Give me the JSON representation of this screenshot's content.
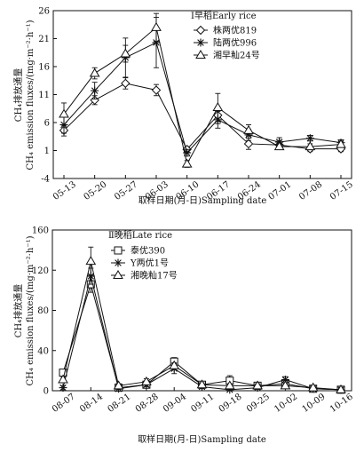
{
  "chart_data": [
    {
      "type": "line",
      "panel_title": "Ⅰ早稻Early rice",
      "xlabel": "取样日期(月-日)Sampling date",
      "ylabel_line1": "CH₄排放通量",
      "ylabel_line2": "CH₄ emission fluxes/(mg·m⁻²·h⁻¹)",
      "categories": [
        "05-13",
        "05-20",
        "05-27",
        "06-03",
        "06-10",
        "06-17",
        "06-24",
        "07-01",
        "07-08",
        "07-15"
      ],
      "yticks": [
        -4,
        1,
        6,
        11,
        16,
        21,
        26
      ],
      "ylim": [
        -4,
        26
      ],
      "legend_position": "top-right",
      "series": [
        {
          "name": "株两优819",
          "marker": "diamond",
          "values": [
            4.6,
            10,
            13,
            11.8,
            1.2,
            7.3,
            2.2,
            2.0,
            1.3,
            1.3
          ],
          "errors": [
            1.0,
            0.8,
            1.0,
            1.0,
            0.5,
            1.5,
            1.0,
            0.8,
            0.5,
            0.5
          ]
        },
        {
          "name": "陆两优996",
          "marker": "asterisk",
          "values": [
            5.6,
            11.7,
            17.6,
            20.3,
            0.6,
            6.5,
            3.8,
            2.5,
            3.2,
            2.4
          ],
          "errors": [
            1.5,
            1.5,
            3.5,
            4.5,
            0.6,
            1.5,
            1.0,
            0.8,
            0.5,
            0.5
          ]
        },
        {
          "name": "湘早籼24号",
          "marker": "triangle",
          "values": [
            7.5,
            14.8,
            18.3,
            23.0,
            -1.4,
            8.7,
            4.6,
            1.7,
            1.7,
            2.1
          ],
          "errors": [
            2.0,
            1.0,
            1.5,
            2.5,
            0.6,
            2.5,
            1.0,
            0.5,
            0.5,
            0.5
          ]
        }
      ]
    },
    {
      "type": "line",
      "panel_title": "Ⅱ晚稻Late rice",
      "xlabel": "取样日期(月-日)Sampling date",
      "ylabel_line1": "CH₄排放通量",
      "ylabel_line2": "CH₄ emission fluxes/(mg·m⁻²·h⁻¹)",
      "categories": [
        "08-07",
        "08-14",
        "08-21",
        "08-28",
        "09-04",
        "09-11",
        "09-18",
        "09-25",
        "10-02",
        "10-09",
        "10-16"
      ],
      "yticks": [
        0,
        40,
        80,
        120,
        160
      ],
      "ylim": [
        0,
        160
      ],
      "legend_position": "top-right",
      "series": [
        {
          "name": "泰优390",
          "marker": "square",
          "values": [
            18,
            106,
            3,
            6,
            29,
            6,
            10,
            5,
            7,
            2,
            1
          ],
          "errors": [
            3,
            8,
            2,
            2,
            4,
            2,
            5,
            2,
            2,
            1,
            1
          ]
        },
        {
          "name": "Y两优1号",
          "marker": "asterisk",
          "values": [
            3,
            114,
            2,
            6,
            22,
            4,
            1,
            3,
            11,
            2,
            1
          ],
          "errors": [
            2,
            8,
            1,
            2,
            5,
            2,
            1,
            1,
            3,
            1,
            1
          ]
        },
        {
          "name": "湘晚籼17号",
          "marker": "triangle",
          "values": [
            11,
            129,
            5,
            9,
            25,
            6,
            5,
            5,
            5,
            3,
            1
          ],
          "errors": [
            3,
            14,
            2,
            3,
            3,
            2,
            2,
            2,
            2,
            1,
            1
          ]
        }
      ]
    }
  ]
}
